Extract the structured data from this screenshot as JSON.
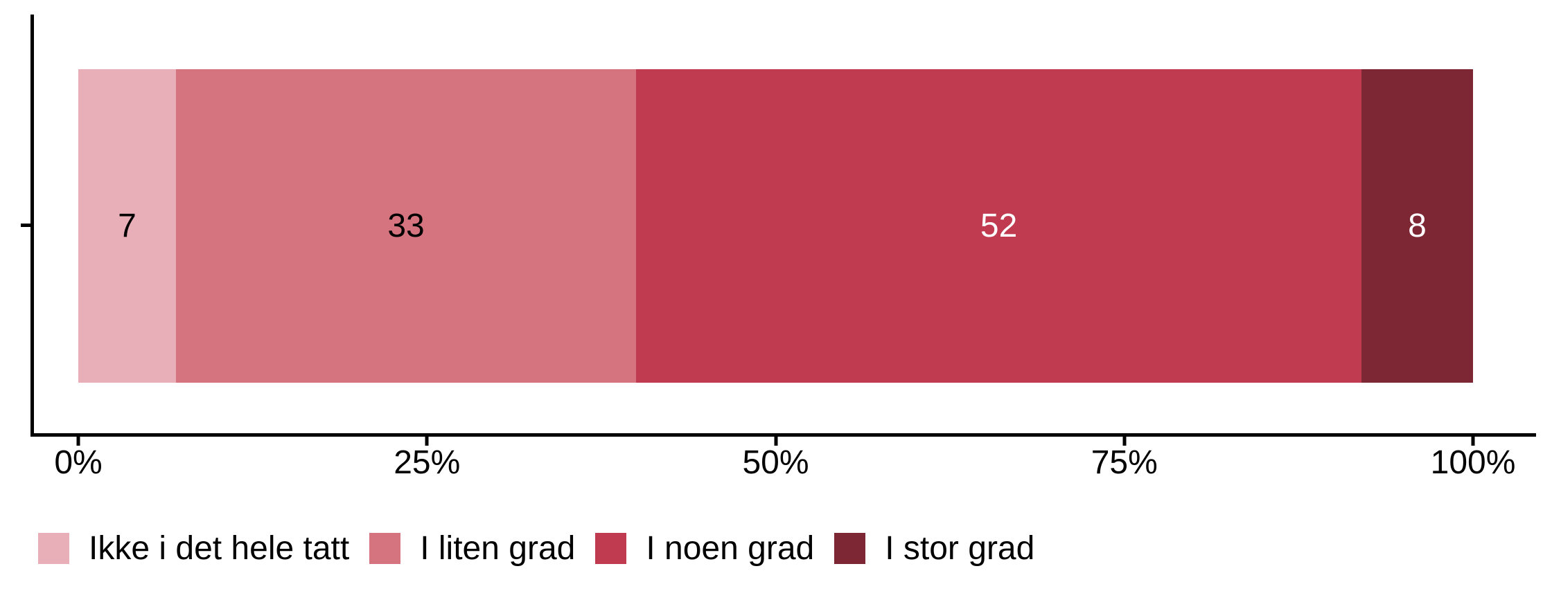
{
  "chart_data": {
    "type": "bar",
    "orientation": "horizontal",
    "stacked": true,
    "unit": "percent",
    "title": "",
    "xlabel": "",
    "ylabel": "",
    "categories": [
      ""
    ],
    "series": [
      {
        "name": "Ikke i det hele tatt",
        "value": 7,
        "color": "#E8AFB8",
        "label_color": "#000000"
      },
      {
        "name": "I liten grad",
        "value": 33,
        "color": "#D5737F",
        "label_color": "#000000"
      },
      {
        "name": "I noen grad",
        "value": 52,
        "color": "#C03A50",
        "label_color": "#FFFFFF"
      },
      {
        "name": "I stor grad",
        "value": 8,
        "color": "#7D2634",
        "label_color": "#FFFFFF"
      }
    ],
    "x_axis": {
      "range": [
        0,
        100
      ],
      "ticks": [
        {
          "label": "0%",
          "value": 0
        },
        {
          "label": "25%",
          "value": 25
        },
        {
          "label": "50%",
          "value": 50
        },
        {
          "label": "75%",
          "value": 75
        },
        {
          "label": "100%",
          "value": 100
        }
      ]
    },
    "legend": {
      "position": "bottom",
      "items": [
        "Ikke i det hele tatt",
        "I liten grad",
        "I noen grad",
        "I stor grad"
      ]
    },
    "axis_color": "#000000",
    "background": "#FFFFFF",
    "grid": false
  }
}
